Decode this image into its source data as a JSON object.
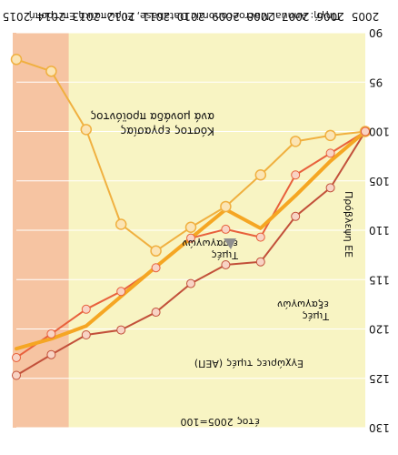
{
  "chart_data": {
    "type": "line",
    "note": "Image is rendered upside down (rotated 180°).",
    "source": "Πηγή: Annual Macroeconomic Database, Ευρωπαϊκή Επιτροπή.",
    "base_label": "έτος 2005=100",
    "projection_label": "Πρόβλεψη ΕΕ",
    "projection_start": 2013.5,
    "projection_end": 2015,
    "x": [
      2005,
      2006,
      2007,
      2008,
      2009,
      2010,
      2011,
      2012,
      2013,
      2014,
      2015
    ],
    "y_ticks": [
      90,
      95,
      100,
      105,
      110,
      115,
      120,
      125,
      130
    ],
    "ylim": [
      90,
      130
    ],
    "y_inverted": true,
    "grid": true,
    "series": [
      {
        "name": "Κόστος εργασίας ανά μονάδα προϊόντος",
        "label_lines": [
          "Κόστος εργασίας",
          "ανά μονάδα προϊόντος"
        ],
        "color": "#f0b040",
        "values": [
          100,
          100.4,
          101.0,
          104.4,
          107.6,
          109.7,
          112.1,
          109.4,
          99.8,
          93.9,
          92.7
        ]
      },
      {
        "name": "Τιμές εισαγωγών",
        "label_lines": [
          "Τιμές",
          "εισαγωγών"
        ],
        "color": "#f5a623",
        "values": [
          100,
          103.0,
          106.5,
          109.8,
          107.9,
          110.8,
          113.7,
          116.7,
          119.7,
          121.0,
          122.0
        ]
      },
      {
        "name": "Τιμές εξαγωγών",
        "label_lines": [
          "Τιμές",
          "εξαγωγών"
        ],
        "color": "#e8603c",
        "values": [
          100,
          102.2,
          104.4,
          110.7,
          109.9,
          110.8,
          113.8,
          116.2,
          118.0,
          120.5,
          122.9
        ]
      },
      {
        "name": "Εγχώριες τιμές (ΑΕΠ)",
        "label_lines": [
          "Εγχώριες τιμές (ΑΕΠ)"
        ],
        "color": "#c2503a",
        "values": [
          100,
          105.7,
          108.6,
          113.2,
          113.5,
          115.4,
          118.3,
          120.1,
          120.6,
          122.6,
          124.7
        ]
      }
    ]
  }
}
